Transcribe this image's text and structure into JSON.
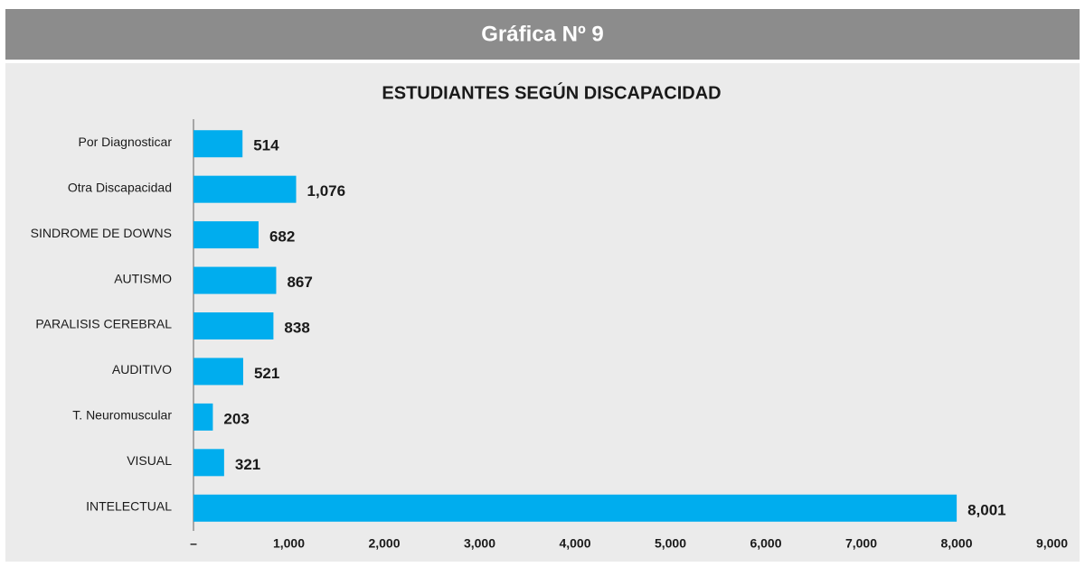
{
  "header": {
    "title": "Gráfica Nº 9"
  },
  "chart_data": {
    "type": "barh",
    "title": "ESTUDIANTES SEGÚN DISCAPACIDAD",
    "categories": [
      "Por Diagnosticar",
      "Otra Discapacidad",
      "SINDROME DE DOWNS",
      "AUTISMO",
      "PARALISIS CEREBRAL",
      "AUDITIVO",
      "T. Neuromuscular",
      "VISUAL",
      "INTELECTUAL"
    ],
    "values": [
      514,
      1076,
      682,
      867,
      838,
      521,
      203,
      321,
      8001
    ],
    "value_labels": [
      "514",
      "1,076",
      "682",
      "867",
      "838",
      "521",
      "203",
      "321",
      "8,001"
    ],
    "color": "#00adee",
    "xlim": [
      0,
      9000
    ],
    "xticks": [
      {
        "value": 0,
        "label": "–"
      },
      {
        "value": 1000,
        "label": "1,000"
      },
      {
        "value": 2000,
        "label": "2,000"
      },
      {
        "value": 3000,
        "label": "3,000"
      },
      {
        "value": 4000,
        "label": "4,000"
      },
      {
        "value": 5000,
        "label": "5,000"
      },
      {
        "value": 6000,
        "label": "6,000"
      },
      {
        "value": 7000,
        "label": "7,000"
      },
      {
        "value": 8000,
        "label": "8,000"
      },
      {
        "value": 9000,
        "label": "9,000"
      }
    ],
    "grid": false
  }
}
